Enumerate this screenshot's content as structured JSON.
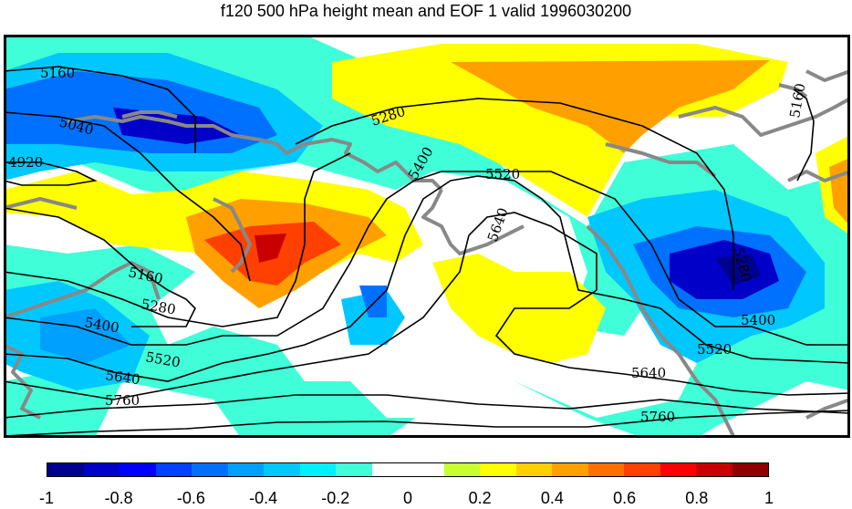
{
  "title": "f120 500 hPa height mean and EOF 1 valid 1996030200",
  "contour_labels": [
    "5160",
    "5040",
    "4920",
    "5280",
    "5400",
    "5520",
    "5640",
    "5160",
    "5280",
    "5400",
    "5520",
    "5640",
    "5760",
    "5280",
    "5400",
    "5520",
    "5640",
    "5760",
    "5160"
  ],
  "colorbar": {
    "colors": [
      "#00008f",
      "#0000c8",
      "#0000ff",
      "#0040ff",
      "#0070ff",
      "#00a0ff",
      "#00c8ff",
      "#00f0ff",
      "#40ffd8",
      "#ffffff",
      "#ffffff",
      "#c8ff30",
      "#ffff00",
      "#ffd000",
      "#ffa000",
      "#ff7000",
      "#ff4000",
      "#ff0000",
      "#c80000",
      "#8f0000"
    ],
    "ticks": [
      "-1",
      "-0.8",
      "-0.6",
      "-0.4",
      "-0.2",
      "0",
      "0.2",
      "0.4",
      "0.6",
      "0.8",
      "1"
    ]
  },
  "colors": {
    "land_outline": "#888888",
    "contour": "#000000",
    "frame": "#000000"
  }
}
